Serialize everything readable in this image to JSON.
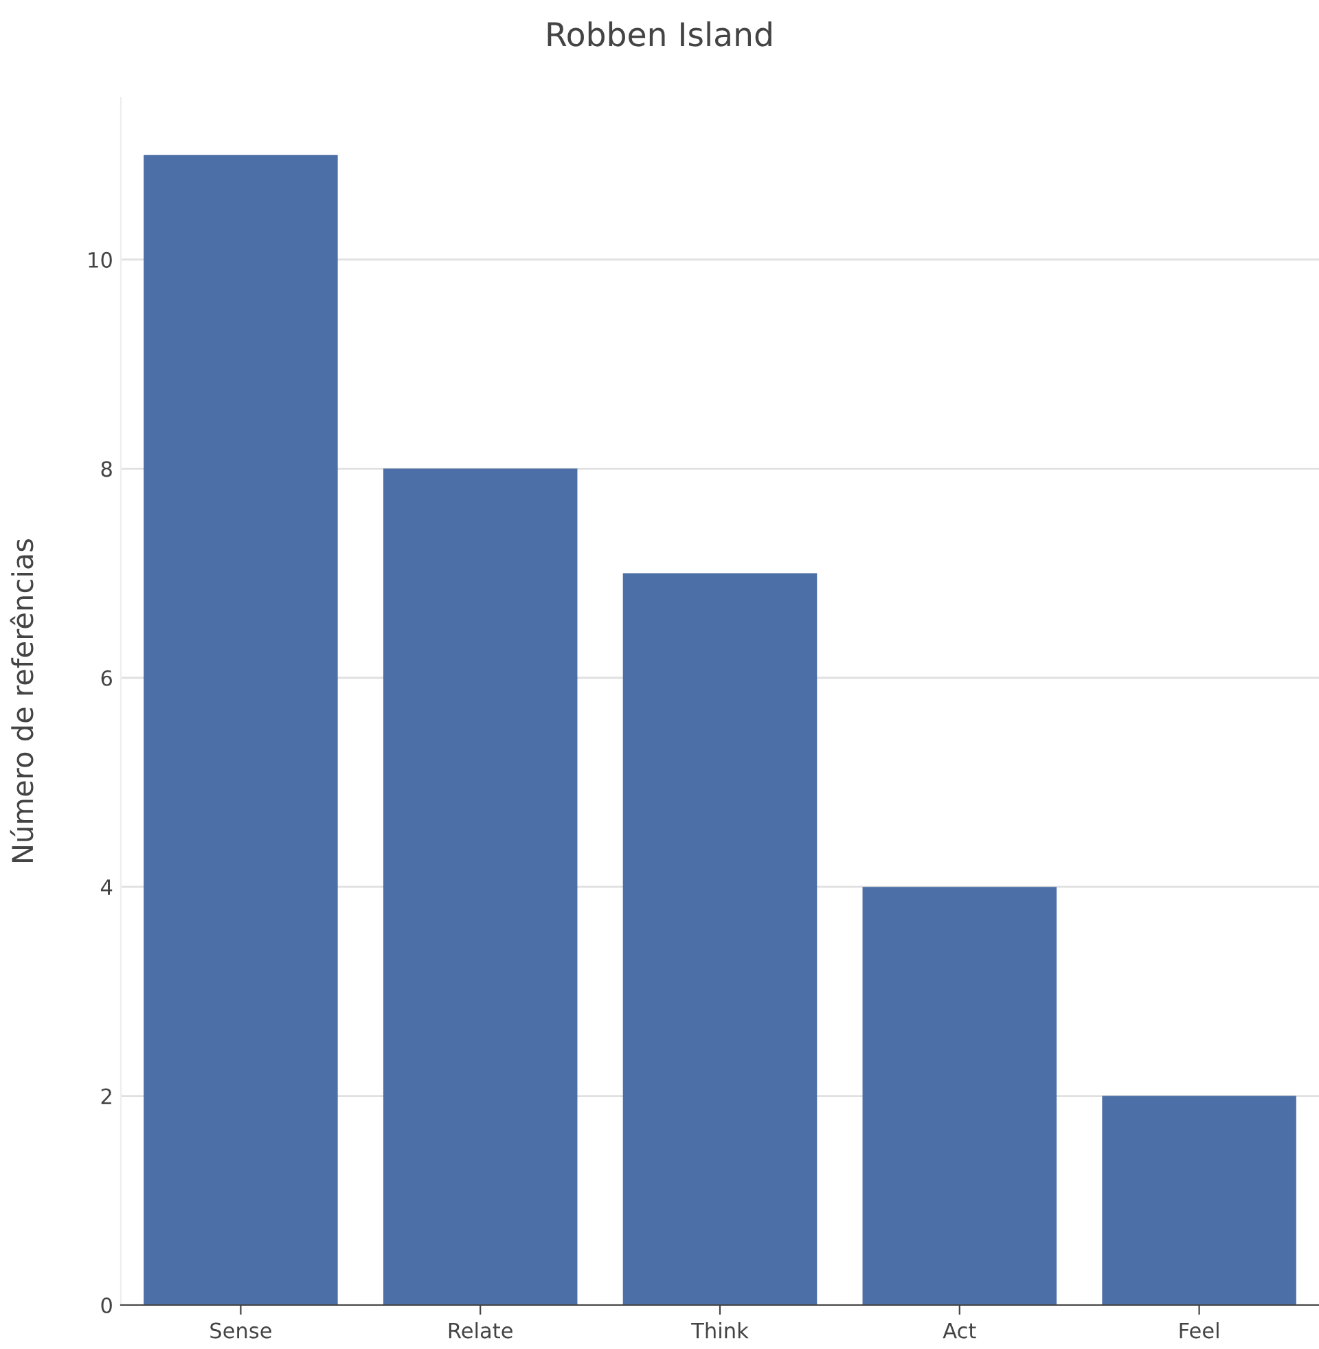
{
  "chart_data": {
    "type": "bar",
    "title": "Robben Island",
    "ylabel": "Número de referências",
    "categories": [
      "Sense",
      "Relate",
      "Think",
      "Act",
      "Feel"
    ],
    "values": [
      11,
      8,
      7,
      4,
      2
    ],
    "color": "#4c6fa7",
    "ylim": [
      0,
      11.55
    ],
    "yticks": [
      0,
      2,
      4,
      6,
      8,
      10
    ],
    "grid": "y"
  }
}
